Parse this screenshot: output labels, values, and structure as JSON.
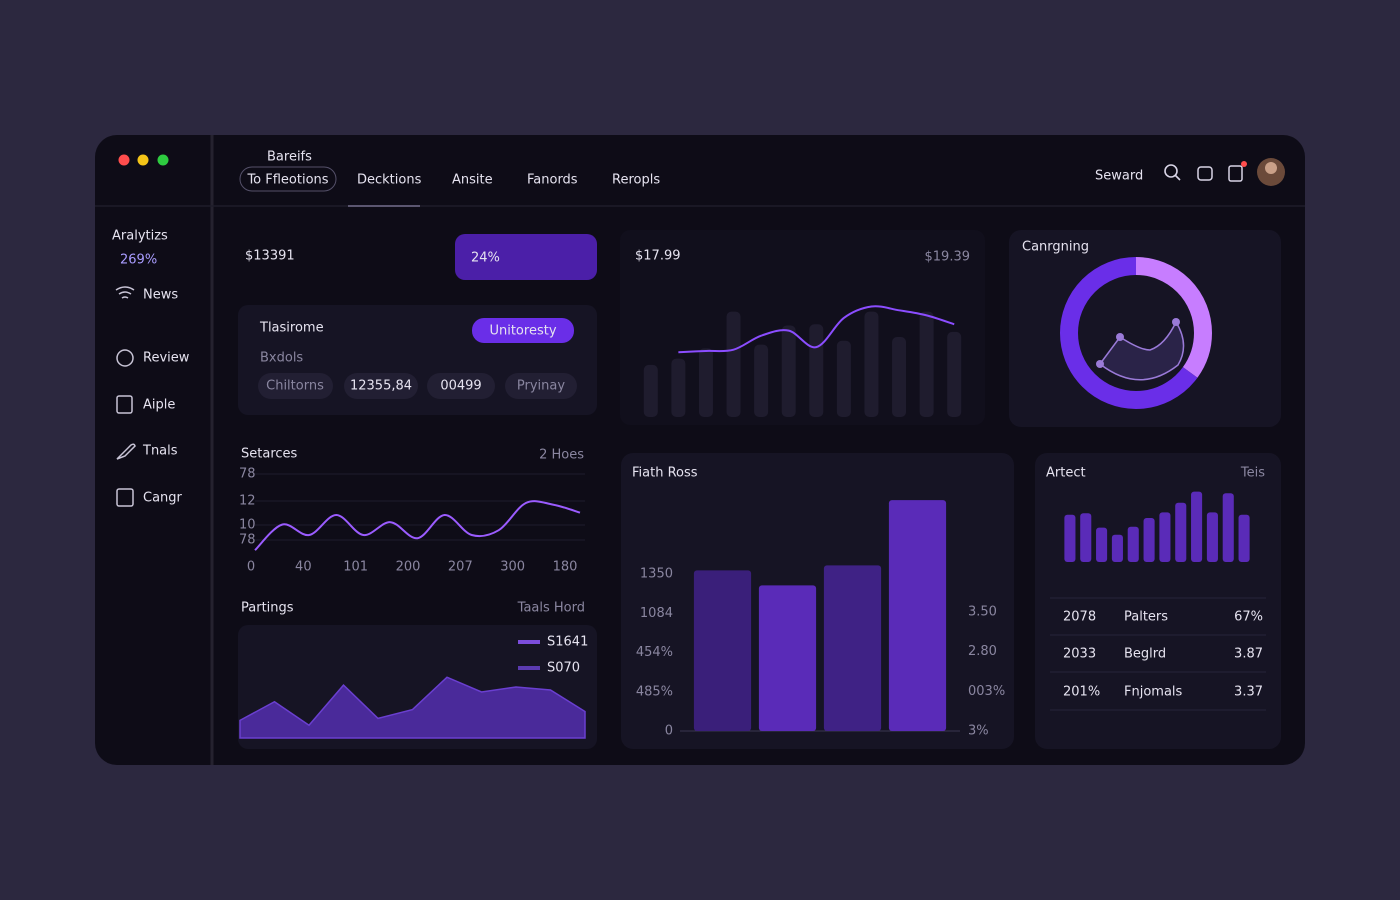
{
  "sidebar": {
    "title": "Aralytizs",
    "value": "269%",
    "items": [
      "News",
      "Review",
      "Aiple",
      "Tnals",
      "Cangr"
    ]
  },
  "nav": {
    "caption": "Bareifs",
    "pill": "To Ffleotions",
    "tabs": [
      "Decktions",
      "Ansite",
      "Fanords",
      "Reropls"
    ],
    "search": "Seward"
  },
  "kpi": {
    "value": "$13391",
    "badge": "24%"
  },
  "filter_card": {
    "title": "Tlasirome",
    "button": "Unitoresty",
    "label": "Bxdols",
    "chips": [
      "Chiltorns",
      "12355,84",
      "00499",
      "Pryinay"
    ]
  },
  "artect_table": {
    "rows": [
      [
        "2078",
        "Palters",
        "67%"
      ],
      [
        "2033",
        "Beglrd",
        "3.87"
      ],
      [
        "201%",
        "Fnjomals",
        "3.37"
      ]
    ]
  },
  "chart_data": [
    {
      "type": "line",
      "title": "Setarces",
      "subtitle": "2 Hoes",
      "y_labels": [
        "78",
        "12",
        "10",
        "78"
      ],
      "x_labels": [
        "0",
        "40",
        "101",
        "200",
        "207",
        "300",
        "180"
      ],
      "values": [
        6,
        38,
        25,
        50,
        25,
        41,
        21,
        50,
        25,
        31,
        65,
        63,
        53
      ],
      "ylim": [
        0,
        100
      ],
      "color": "#9b5cff"
    },
    {
      "type": "area",
      "title": "Partings",
      "subtitle": "Taals Hord",
      "legend": [
        {
          "name": "S1641",
          "color": "#7c4ddb"
        },
        {
          "name": "S070",
          "color": "#5b3bb0"
        }
      ],
      "values": [
        18,
        37,
        13,
        54,
        20,
        29,
        62,
        47,
        52,
        49,
        27
      ],
      "ylim": [
        0,
        100
      ],
      "color": "#4a2a9a"
    },
    {
      "type": "combo",
      "title": "$17.99",
      "subtitle": "$19.39",
      "values": [
        41,
        46,
        54,
        83,
        57,
        72,
        73,
        60,
        83,
        63,
        83,
        67
      ],
      "line_values": [
        null,
        51,
        52,
        53,
        64,
        68,
        55,
        78,
        87,
        84,
        80,
        73
      ],
      "ylim": [
        0,
        100
      ],
      "color": "#1f1c2e",
      "line_color": "#8b4dff"
    },
    {
      "type": "donut",
      "title": "Canrgning",
      "values": [
        35,
        65
      ],
      "colors": [
        "#c77dff",
        "#6a2ee8"
      ]
    },
    {
      "type": "bar",
      "title": "Fiath Ross",
      "y_labels": [
        "1350",
        "1084",
        "454%",
        "485%",
        "0"
      ],
      "y2_labels": [
        "3.50",
        "2.80",
        "003%",
        "3%"
      ],
      "values": [
        64,
        58,
        66,
        92
      ],
      "ylim": [
        0,
        100
      ],
      "colors": [
        "#3a1f7a",
        "#5a2bb8",
        "#3f2285",
        "#5a2bb8"
      ]
    },
    {
      "type": "bar",
      "title": "Artect",
      "subtitle": "Teis",
      "values": [
        59,
        61,
        43,
        34,
        44,
        55,
        62,
        74,
        88,
        62,
        86,
        59
      ],
      "ylim": [
        0,
        100
      ],
      "colors": [
        "#5a2bb8"
      ]
    }
  ]
}
